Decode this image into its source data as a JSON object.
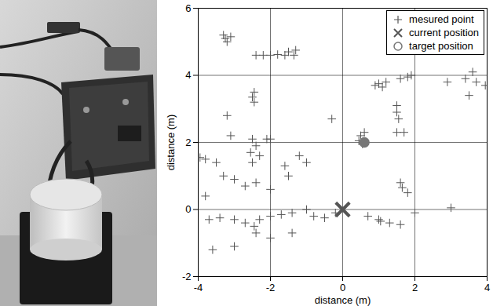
{
  "chart_data": {
    "type": "scatter",
    "xlabel": "distance (m)",
    "ylabel": "distance (m)",
    "xlim": [
      -4,
      4
    ],
    "ylim": [
      -2,
      6
    ],
    "xticks": [
      -4,
      -2,
      0,
      2,
      4
    ],
    "yticks": [
      -2,
      0,
      2,
      4,
      6
    ],
    "grid": true,
    "legend": "top-right",
    "series": [
      {
        "name": "mesured point",
        "marker": "plus",
        "color": "#555555",
        "x": [
          -3.3,
          -3.25,
          -3.2,
          -3.1,
          -2.4,
          -2.2,
          -2.0,
          -1.8,
          -1.6,
          -1.5,
          -1.35,
          -1.3,
          0.9,
          1.0,
          1.1,
          1.2,
          1.6,
          1.8,
          1.9,
          3.4,
          3.6,
          3.7,
          3.5,
          3.95,
          -2.45,
          -2.5,
          -2.45,
          -3.2,
          -3.1,
          -2.5,
          -2.4,
          -2.1,
          -2.0,
          -2.3,
          -2.55,
          -2.5,
          -3.5,
          -3.8,
          -3.95,
          -3.3,
          -3.0,
          -2.7,
          -2.4,
          -2.0,
          -1.5,
          -1.6,
          -1.0,
          -1.2,
          -3.8,
          -3.7,
          -3.4,
          -3.0,
          -2.7,
          -2.45,
          -2.3,
          -2.0,
          -1.7,
          -1.4,
          -1.0,
          -0.8,
          -0.5,
          -0.2,
          -3.6,
          -3.0,
          -2.4,
          -2.0,
          -1.4,
          0.5,
          0.45,
          0.55,
          0.6,
          1.5,
          1.5,
          1.55,
          1.5,
          1.7,
          1.6,
          1.65,
          1.8,
          0.7,
          1.0,
          1.3,
          1.6,
          2.0,
          3.0,
          1.05,
          -0.3,
          2.9
        ],
        "y": [
          5.2,
          5.1,
          5.0,
          5.15,
          4.6,
          4.6,
          4.6,
          4.62,
          4.6,
          4.7,
          4.6,
          4.75,
          3.7,
          3.75,
          3.65,
          3.8,
          3.9,
          3.95,
          4.0,
          3.9,
          4.1,
          3.8,
          3.4,
          3.7,
          3.5,
          3.35,
          3.2,
          2.8,
          2.2,
          2.1,
          1.9,
          2.1,
          2.1,
          1.6,
          1.7,
          1.4,
          1.4,
          1.5,
          1.55,
          1.0,
          0.9,
          0.7,
          0.8,
          0.6,
          1.0,
          1.3,
          1.4,
          1.6,
          0.4,
          -0.3,
          -0.25,
          -0.3,
          -0.4,
          -0.5,
          -0.3,
          -0.2,
          -0.15,
          -0.1,
          0.0,
          -0.2,
          -0.25,
          -0.1,
          -1.2,
          -1.1,
          -0.7,
          -0.85,
          -0.7,
          2.2,
          2.05,
          1.95,
          2.3,
          3.1,
          2.9,
          2.7,
          2.3,
          2.3,
          0.8,
          0.65,
          0.5,
          -0.2,
          -0.3,
          -0.4,
          -0.45,
          -0.1,
          0.05,
          -0.35,
          2.7,
          3.8
        ]
      },
      {
        "name": "current position",
        "marker": "cross",
        "color": "#555555",
        "x": [
          0
        ],
        "y": [
          0
        ]
      },
      {
        "name": "target position",
        "marker": "circle",
        "color": "#777777",
        "x": [
          0.6
        ],
        "y": [
          2.0
        ]
      }
    ]
  }
}
